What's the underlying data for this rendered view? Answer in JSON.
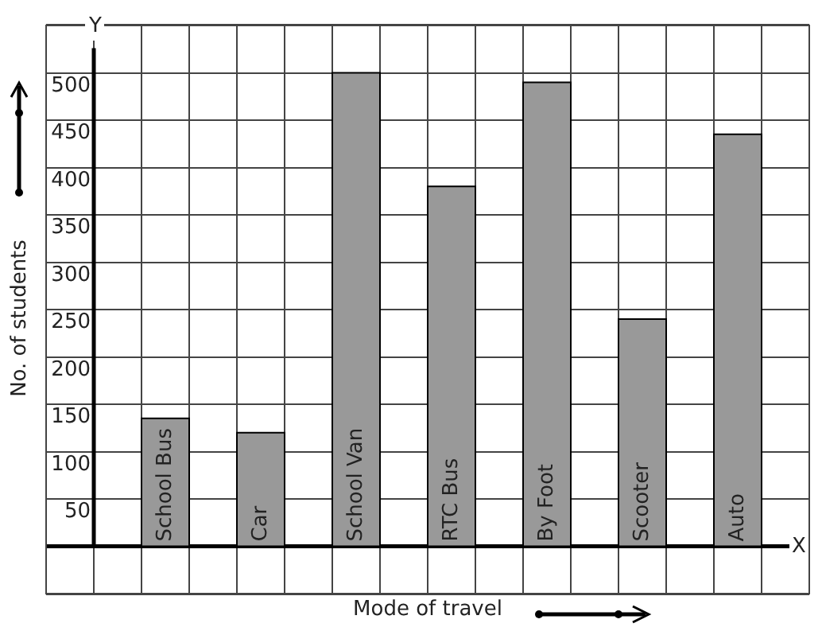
{
  "chart_data": {
    "type": "bar",
    "xlabel": "Mode of travel",
    "ylabel": "No. of students",
    "categories": [
      "School Bus",
      "Car",
      "School Van",
      "RTC Bus",
      "By Foot",
      "Scooter",
      "Auto"
    ],
    "values": [
      135,
      120,
      500,
      380,
      490,
      240,
      435
    ],
    "color": "#999999",
    "ylim": [
      -50,
      550
    ],
    "yticks": [
      {
        "value": 50,
        "label": "50"
      },
      100,
      150,
      200,
      250,
      300,
      350,
      400,
      450,
      500
    ],
    "grid": true,
    "annotations": [
      "Y",
      "X"
    ]
  }
}
